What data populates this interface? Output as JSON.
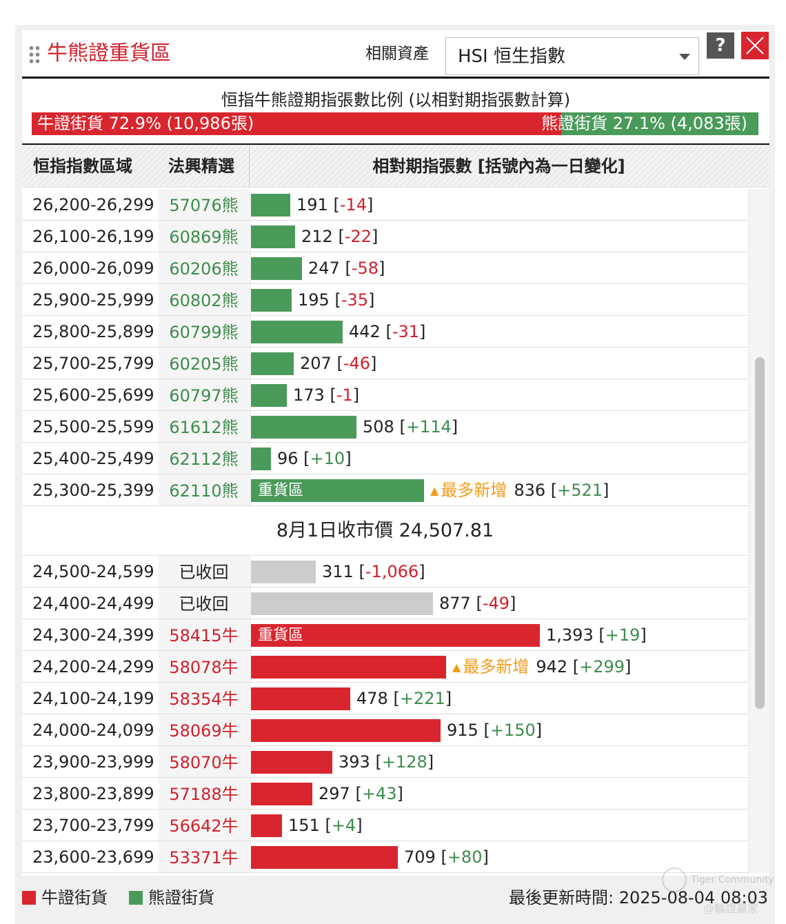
{
  "header": {
    "title": "牛熊證重貨區",
    "asset_label": "相關資產",
    "asset_value": "HSI 恒生指數",
    "help_label": "?"
  },
  "ratio": {
    "title": "恒指牛熊證期指張數比例 (以相對期指張數計算)",
    "bull_label": "牛證街貨 72.9% (10,986張)",
    "bear_label": "熊證街貨 27.1% (4,083張)",
    "bull_pct": 72.9
  },
  "table": {
    "col_range": "恒指指數區域",
    "col_pick": "法興精選",
    "col_contracts": "相對期指張數 [括號內為一日變化]"
  },
  "close_price_label": "8月1日收市價 24,507.81",
  "hot_label": "最多新增",
  "scale_max": 1393,
  "bear_rows": [
    {
      "range": "26,200-26,299",
      "pick": "57076熊",
      "value": 191,
      "qty": "191",
      "change": "-14",
      "tag": "",
      "hot": false
    },
    {
      "range": "26,100-26,199",
      "pick": "60869熊",
      "value": 212,
      "qty": "212",
      "change": "-22",
      "tag": "",
      "hot": false
    },
    {
      "range": "26,000-26,099",
      "pick": "60206熊",
      "value": 247,
      "qty": "247",
      "change": "-58",
      "tag": "",
      "hot": false
    },
    {
      "range": "25,900-25,999",
      "pick": "60802熊",
      "value": 195,
      "qty": "195",
      "change": "-35",
      "tag": "",
      "hot": false
    },
    {
      "range": "25,800-25,899",
      "pick": "60799熊",
      "value": 442,
      "qty": "442",
      "change": "-31",
      "tag": "",
      "hot": false
    },
    {
      "range": "25,700-25,799",
      "pick": "60205熊",
      "value": 207,
      "qty": "207",
      "change": "-46",
      "tag": "",
      "hot": false
    },
    {
      "range": "25,600-25,699",
      "pick": "60797熊",
      "value": 173,
      "qty": "173",
      "change": "-1",
      "tag": "",
      "hot": false
    },
    {
      "range": "25,500-25,599",
      "pick": "61612熊",
      "value": 508,
      "qty": "508",
      "change": "+114",
      "tag": "",
      "hot": false
    },
    {
      "range": "25,400-25,499",
      "pick": "62112熊",
      "value": 96,
      "qty": "96",
      "change": "+10",
      "tag": "",
      "hot": false
    },
    {
      "range": "25,300-25,399",
      "pick": "62110熊",
      "value": 836,
      "qty": "836",
      "change": "+521",
      "tag": "重貨區",
      "hot": true
    }
  ],
  "bull_rows": [
    {
      "range": "24,500-24,599",
      "pick": "已收回",
      "kind": "gray",
      "value": 311,
      "qty": "311",
      "change": "-1,066",
      "tag": "",
      "hot": false
    },
    {
      "range": "24,400-24,499",
      "pick": "已收回",
      "kind": "gray",
      "value": 877,
      "qty": "877",
      "change": "-49",
      "tag": "",
      "hot": false
    },
    {
      "range": "24,300-24,399",
      "pick": "58415牛",
      "kind": "bull",
      "value": 1393,
      "qty": "1,393",
      "change": "+19",
      "tag": "重貨區",
      "hot": false
    },
    {
      "range": "24,200-24,299",
      "pick": "58078牛",
      "kind": "bull",
      "value": 942,
      "qty": "942",
      "change": "+299",
      "tag": "",
      "hot": true
    },
    {
      "range": "24,100-24,199",
      "pick": "58354牛",
      "kind": "bull",
      "value": 478,
      "qty": "478",
      "change": "+221",
      "tag": "",
      "hot": false
    },
    {
      "range": "24,000-24,099",
      "pick": "58069牛",
      "kind": "bull",
      "value": 915,
      "qty": "915",
      "change": "+150",
      "tag": "",
      "hot": false
    },
    {
      "range": "23,900-23,999",
      "pick": "58070牛",
      "kind": "bull",
      "value": 393,
      "qty": "393",
      "change": "+128",
      "tag": "",
      "hot": false
    },
    {
      "range": "23,800-23,899",
      "pick": "57188牛",
      "kind": "bull",
      "value": 297,
      "qty": "297",
      "change": "+43",
      "tag": "",
      "hot": false
    },
    {
      "range": "23,700-23,799",
      "pick": "56642牛",
      "kind": "bull",
      "value": 151,
      "qty": "151",
      "change": "+4",
      "tag": "",
      "hot": false
    },
    {
      "range": "23,600-23,699",
      "pick": "53371牛",
      "kind": "bull",
      "value": 709,
      "qty": "709",
      "change": "+80",
      "tag": "",
      "hot": false
    }
  ],
  "footer": {
    "legend_bull": "牛證街貨",
    "legend_bear": "熊證街貨",
    "updated": "最後更新時間: 2025-08-04 08:03"
  },
  "watermark": {
    "line1": "Tiger Community",
    "line2": "@輪證贏家"
  },
  "colors": {
    "bull": "#d9262e",
    "bear": "#4a9a59",
    "recalled": "#cccccc",
    "hot": "#f29b18",
    "negative": "#d0202c",
    "positive": "#3d8c4c"
  }
}
